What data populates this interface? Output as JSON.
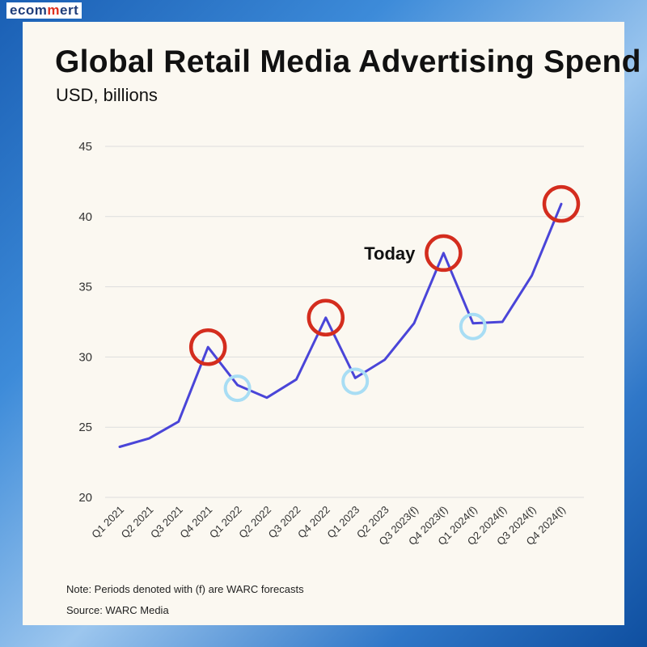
{
  "brand": {
    "text": "ecommert"
  },
  "colors": {
    "line": "#4a45d8",
    "peak_circle": "#d42d1e",
    "dip_circle": "#a8ddf4",
    "grid": "#dddddd"
  },
  "chart_data": {
    "type": "line",
    "title": "Global Retail Media Advertising Spend",
    "subtitle": "USD, billions",
    "categories": [
      "Q1 2021",
      "Q2 2021",
      "Q3 2021",
      "Q4 2021",
      "Q1 2022",
      "Q2 2022",
      "Q3 2022",
      "Q4 2022",
      "Q1 2023",
      "Q2 2023",
      "Q3 2023(f)",
      "Q4 2023(f)",
      "Q1 2024(f)",
      "Q2 2024(f)",
      "Q3 2024(f)",
      "Q4 2024(f)"
    ],
    "series": [
      {
        "values": [
          23.6,
          24.2,
          25.4,
          30.7,
          28.0,
          27.1,
          28.4,
          32.8,
          28.5,
          29.8,
          32.4,
          37.4,
          32.4,
          32.5,
          35.8,
          40.9
        ]
      }
    ],
    "ylim": [
      20,
      45
    ],
    "yticks": [
      20,
      25,
      30,
      35,
      40,
      45
    ],
    "grid": true,
    "annotations": [
      {
        "text": "Today",
        "category_index": 11
      }
    ],
    "highlight_peaks": [
      3,
      7,
      11,
      15
    ],
    "highlight_dips": [
      4,
      8,
      12
    ]
  },
  "footer": {
    "note": "Note: Periods denoted with (f) are WARC forecasts",
    "source": "Source: WARC Media"
  }
}
